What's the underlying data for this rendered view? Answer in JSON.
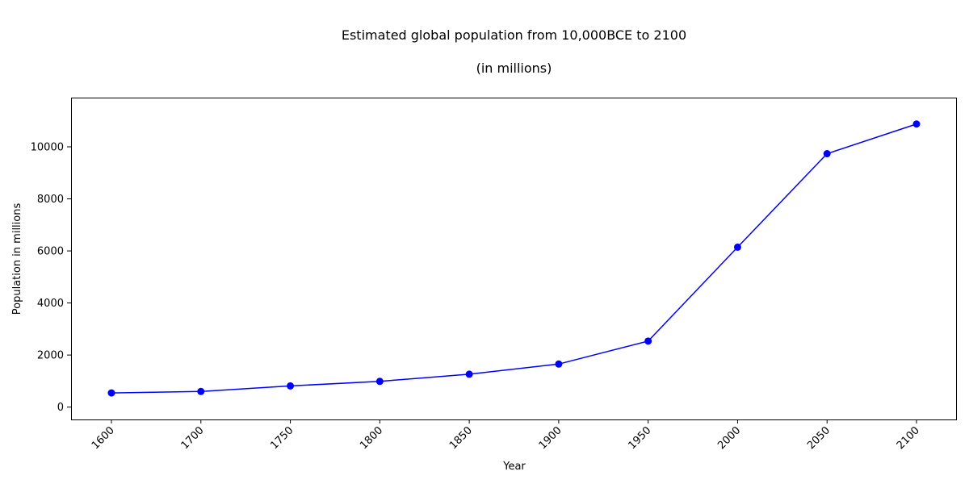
{
  "chart_data": {
    "type": "line",
    "title": "Estimated global population from 10,000BCE to 2100",
    "subtitle": "(in millions)",
    "xlabel": "Year",
    "ylabel": "Population in millions",
    "categories": [
      "1600",
      "1700",
      "1750",
      "1800",
      "1850",
      "1900",
      "1950",
      "2000",
      "2050",
      "2100"
    ],
    "series": [
      {
        "name": "Population",
        "values": [
          545,
          600,
          814,
          989,
          1263,
          1654,
          2536,
          6145,
          9735,
          10875
        ],
        "color": "#0000ff"
      }
    ],
    "yticks": [
      0,
      2000,
      4000,
      6000,
      8000,
      10000
    ],
    "ylim": [
      -475,
      11890
    ],
    "grid": false,
    "legend": "none"
  }
}
